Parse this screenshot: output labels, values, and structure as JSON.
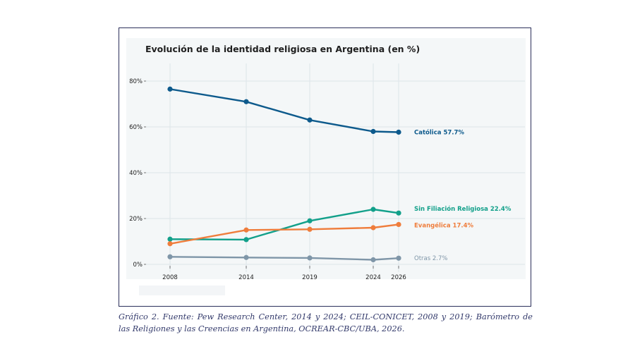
{
  "chart_data": {
    "type": "line",
    "title": "Evolución de la identidad religiosa en Argentina (en %)",
    "xlabel": "",
    "ylabel": "",
    "x": [
      2008,
      2014,
      2019,
      2024,
      2026
    ],
    "x_tick_labels": [
      "2008",
      "2014",
      "2019",
      "2024",
      "2026"
    ],
    "ylim": [
      -3,
      88
    ],
    "y_ticks": [
      0,
      20,
      40,
      60,
      80
    ],
    "y_tick_labels": [
      "0%",
      "20%",
      "40%",
      "60%",
      "80%"
    ],
    "grid": true,
    "series": [
      {
        "key": "catolica",
        "end_label": "Católica  57.7%",
        "color": "#0d5a8c",
        "values": [
          76.5,
          71,
          63,
          58,
          57.7
        ]
      },
      {
        "key": "sin_filiacion",
        "end_label": "Sin Filiación Religiosa  22.4%",
        "color": "#12a08a",
        "values": [
          11,
          10.8,
          19,
          24,
          22.4
        ]
      },
      {
        "key": "evangelica",
        "end_label": "Evangélica  17.4%",
        "color": "#ef7d3c",
        "values": [
          9,
          15,
          15.3,
          16,
          17.4
        ]
      },
      {
        "key": "otras",
        "end_label": "Otras  2.7%",
        "color": "#7f96a8",
        "values": [
          3.3,
          3,
          2.8,
          2,
          2.7
        ]
      }
    ]
  },
  "caption": "Gráfico 2. Fuente: Pew Research Center, 2014 y 2024; CEIL-CONICET, 2008 y 2019; Barómetro de las Religiones y las Creencias en Argentina, OCREAR-CBC/UBA, 2026."
}
